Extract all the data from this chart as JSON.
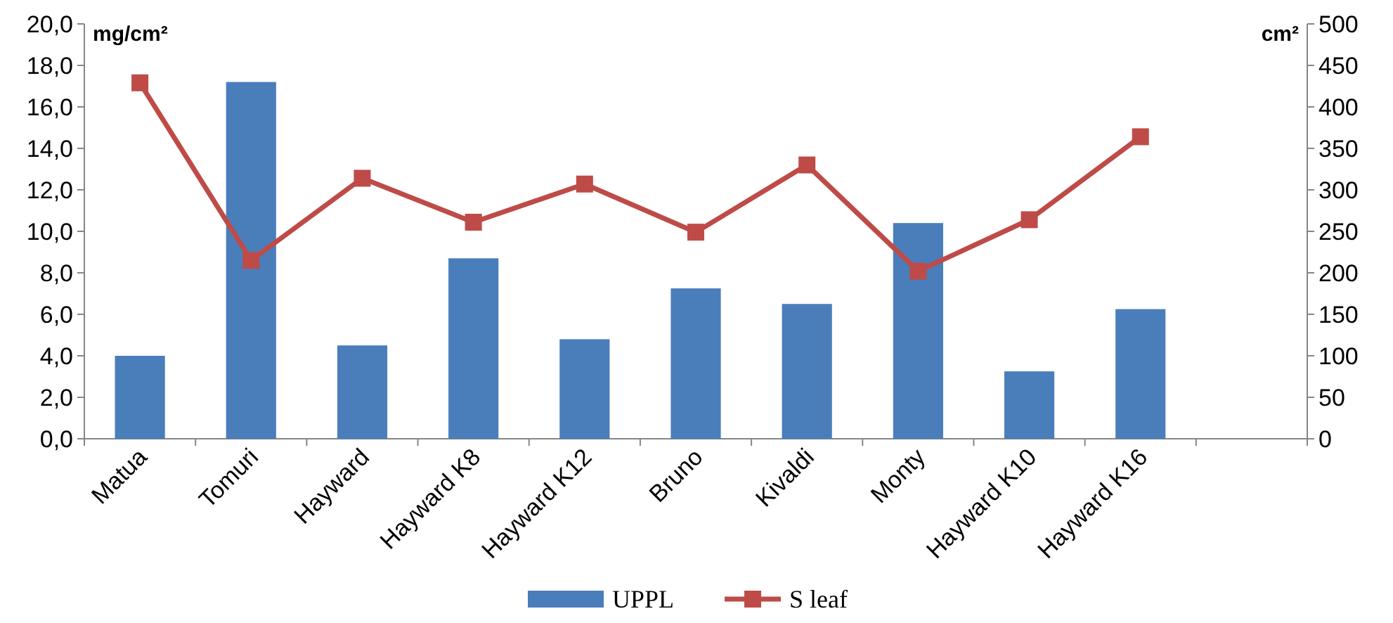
{
  "chart_data": {
    "type": "bar",
    "categories": [
      "Matua",
      "Tomuri",
      "Hayward",
      "Hayward K8",
      "Hayward K12",
      "Bruno",
      "Kivaldi",
      "Monty",
      "Hayward K10",
      "Hayward K16",
      null
    ],
    "series": [
      {
        "name": "UPPL",
        "color": "#4a7ebb",
        "values": [
          4.0,
          17.2,
          4.5,
          8.7,
          4.8,
          7.25,
          6.5,
          10.4,
          3.25,
          6.25,
          null
        ]
      },
      {
        "name": "S leaf",
        "type": "line",
        "axis": "y2",
        "color": "#be4b48",
        "marker": "square",
        "values": [
          429,
          215,
          314,
          261,
          307,
          249,
          330,
          202,
          264,
          364,
          null
        ]
      }
    ],
    "ylabel": "mg/cm²",
    "y2label": "cm²",
    "ylim": [
      0,
      20
    ],
    "yticks": [
      {
        "value": 0,
        "label": "0,0"
      },
      {
        "value": 2,
        "label": "2,0"
      },
      {
        "value": 4,
        "label": "4,0"
      },
      {
        "value": 6,
        "label": "6,0"
      },
      {
        "value": 8,
        "label": "8,0"
      },
      {
        "value": 10,
        "label": "10,0"
      },
      {
        "value": 12,
        "label": "12,0"
      },
      {
        "value": 14,
        "label": "14,0"
      },
      {
        "value": 16,
        "label": "16,0"
      },
      {
        "value": 18,
        "label": "18,0"
      },
      {
        "value": 20,
        "label": "20,0"
      }
    ],
    "y2lim": [
      0,
      500
    ],
    "y2ticks": [
      0,
      50,
      100,
      150,
      200,
      250,
      300,
      350,
      400,
      450,
      500
    ],
    "legend": "bottom",
    "grid": false
  }
}
